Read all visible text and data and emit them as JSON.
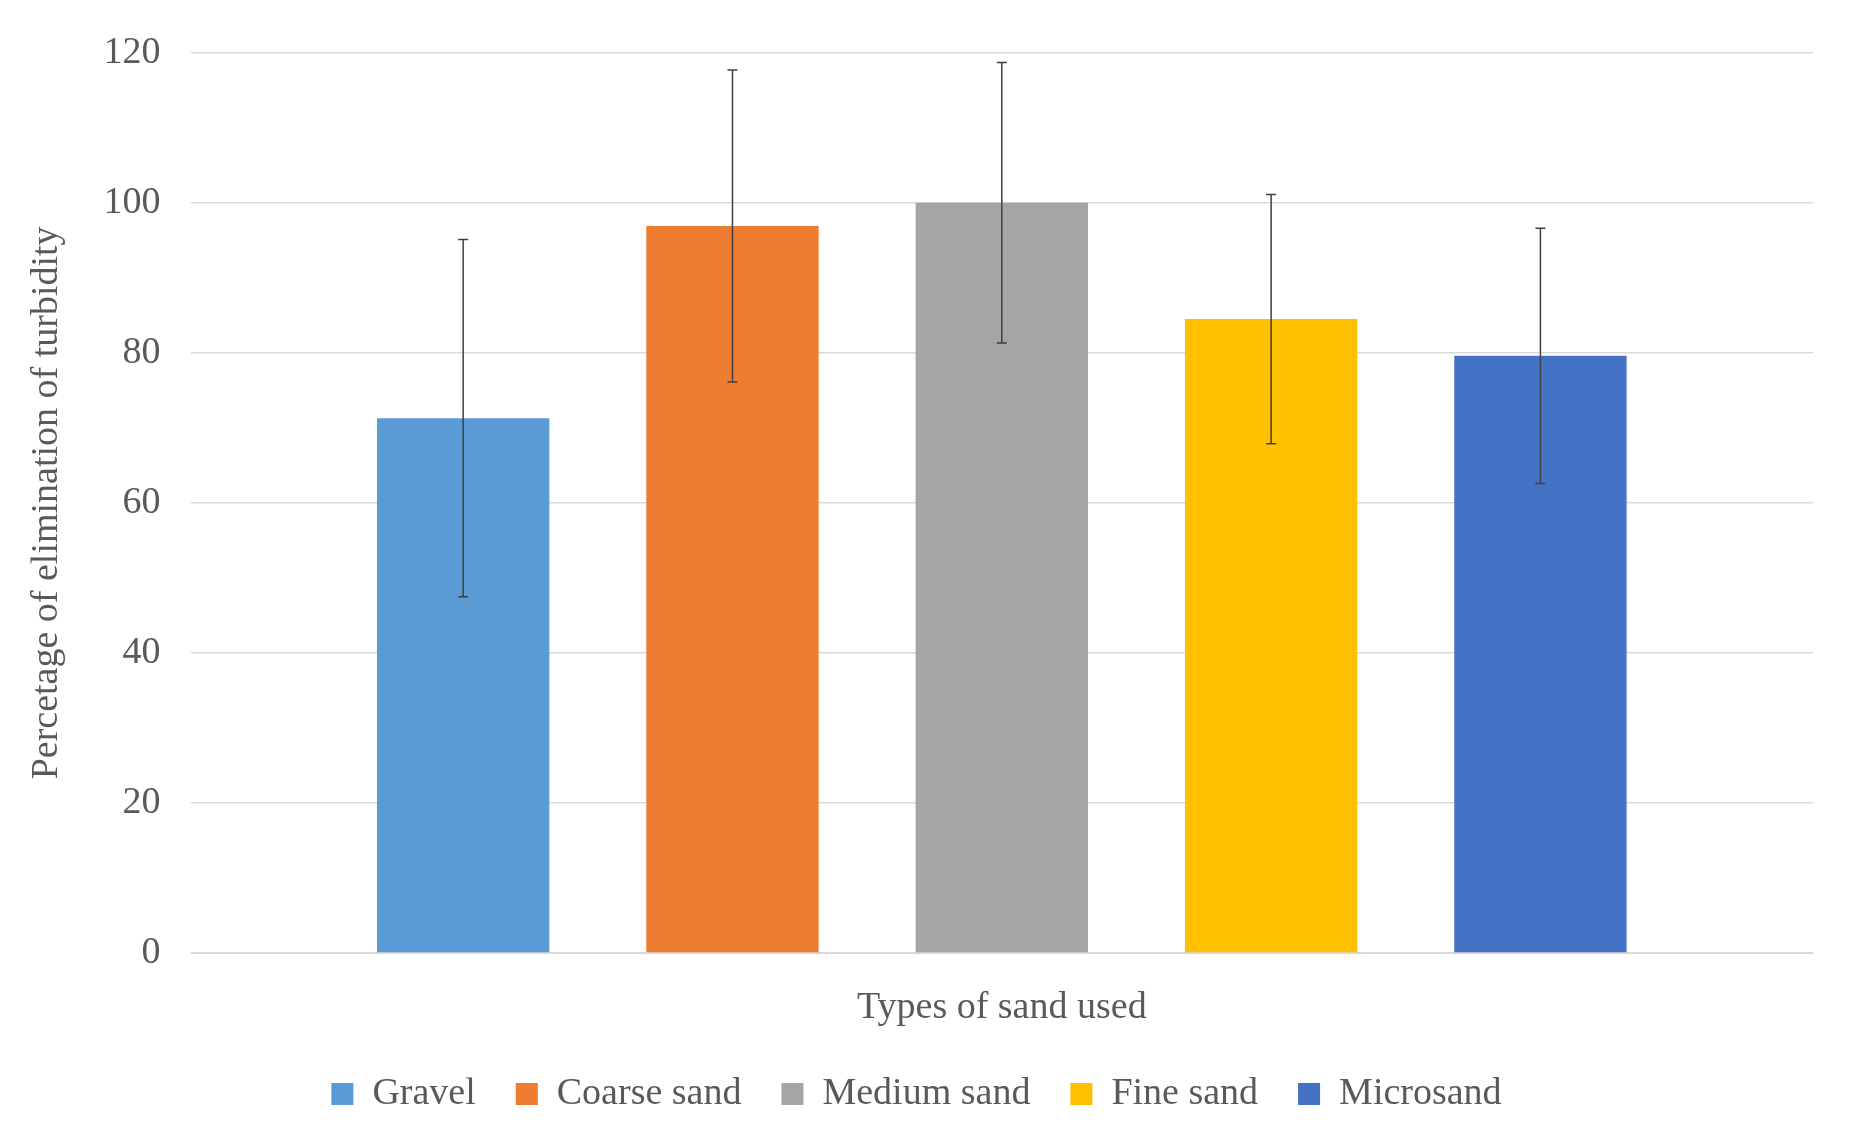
{
  "chart_data": {
    "type": "bar",
    "xlabel": "Types of sand used",
    "ylabel": "Percetage of elimination of turbidity",
    "categories": [
      null
    ],
    "series": [
      {
        "name": "Gravel",
        "color": "#5b9bd5",
        "values": [
          71.3
        ],
        "errors": [
          23.8
        ]
      },
      {
        "name": "Coarse sand",
        "color": "#ed7d31",
        "values": [
          96.9
        ],
        "errors": [
          20.8
        ]
      },
      {
        "name": "Medium sand",
        "color": "#a5a5a5",
        "values": [
          100
        ],
        "errors": [
          18.7
        ]
      },
      {
        "name": "Fine sand",
        "color": "#ffc000",
        "values": [
          84.5
        ],
        "errors": [
          16.6
        ]
      },
      {
        "name": "Microsand",
        "color": "#4472c4",
        "values": [
          79.6
        ],
        "errors": [
          17
        ]
      }
    ],
    "ylim": [
      0,
      120
    ],
    "yticks": [
      0,
      20,
      40,
      60,
      80,
      100,
      120
    ],
    "grid": "y",
    "legend": "bottom"
  }
}
